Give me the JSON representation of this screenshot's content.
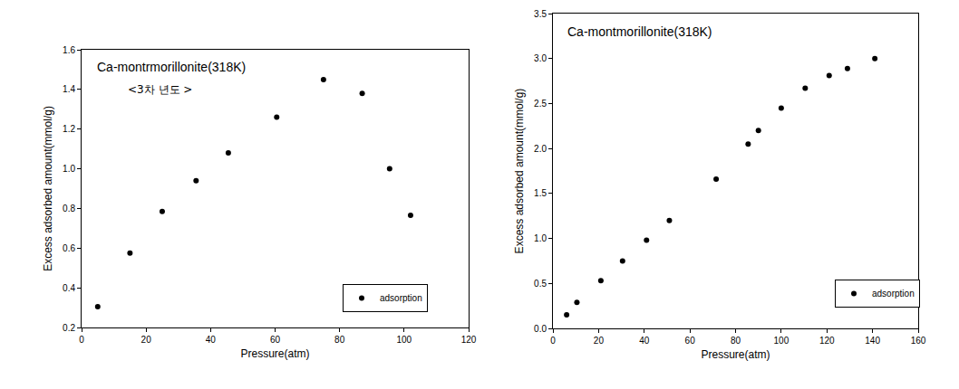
{
  "chart_data": [
    {
      "type": "scatter",
      "title": "Ca-montrmorillonite(318K)",
      "subtitle": "<3차 년도 >",
      "x_label": "Pressure(atm)",
      "y_label": "Excess adsorbed amount(mmol/g)",
      "x": [
        5,
        15,
        25,
        35.5,
        45.5,
        60.5,
        75,
        87,
        95.5,
        102
      ],
      "series": [
        {
          "name": "adsorption",
          "color": "#000000",
          "marker": "circle",
          "values": [
            0.305,
            0.575,
            0.785,
            0.94,
            1.08,
            1.26,
            1.45,
            1.38,
            1.0,
            0.765
          ]
        }
      ],
      "xlim": [
        0,
        120
      ],
      "xticks": [
        0,
        20,
        40,
        60,
        80,
        100,
        120
      ],
      "ylim": [
        0.2,
        1.6
      ],
      "yticks": [
        0.2,
        0.4,
        0.6,
        0.8,
        {
          "value": 1,
          "label": "1.0"
        },
        1.2,
        1.4,
        1.6
      ],
      "grid": false,
      "legend": "lower right"
    },
    {
      "type": "scatter",
      "title": "Ca-montmorillonite(318K)",
      "x_label": "Pressure(atm)",
      "y_label": "Excess adsorbed amount(mmol/g)",
      "x": [
        6,
        10.5,
        21,
        30.5,
        41,
        51,
        71.5,
        85.5,
        90,
        100,
        110.5,
        121,
        129,
        141
      ],
      "series": [
        {
          "name": "adsorption",
          "color": "#000000",
          "marker": "circle",
          "values": [
            0.15,
            0.29,
            0.53,
            0.75,
            0.98,
            1.2,
            1.66,
            2.05,
            2.2,
            2.45,
            2.67,
            2.81,
            2.89,
            3.0
          ]
        }
      ],
      "xlim": [
        0,
        160
      ],
      "xticks": [
        0,
        20,
        40,
        60,
        80,
        100,
        120,
        140,
        160
      ],
      "ylim": [
        0,
        3.5
      ],
      "yticks": [
        {
          "value": 0,
          "label": "0.0"
        },
        0.5,
        {
          "value": 1,
          "label": "1.0"
        },
        1.5,
        {
          "value": 2,
          "label": "2.0"
        },
        2.5,
        {
          "value": 3,
          "label": "3.0"
        },
        3.5
      ],
      "grid": false,
      "legend": "lower right"
    }
  ]
}
